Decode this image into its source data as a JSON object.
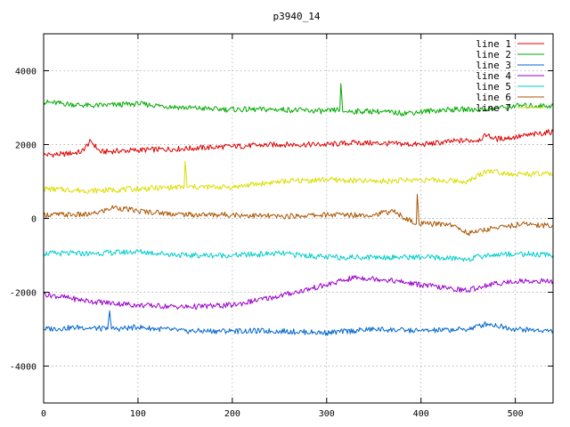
{
  "chart_data": {
    "type": "line",
    "title": "p3940_14",
    "xlabel": "",
    "ylabel": "",
    "xlim": [
      0,
      540
    ],
    "ylim": [
      -5000,
      5000
    ],
    "x_ticks": [
      0,
      100,
      200,
      300,
      400,
      500
    ],
    "y_ticks": [
      -4000,
      -2000,
      0,
      2000,
      4000
    ],
    "grid": true,
    "legend_position": "top-right",
    "series": [
      {
        "name": "line 1",
        "color": "#dd0000",
        "points": [
          [
            0,
            1720
          ],
          [
            20,
            1740
          ],
          [
            40,
            1800
          ],
          [
            50,
            2100
          ],
          [
            60,
            1800
          ],
          [
            100,
            1850
          ],
          [
            150,
            1890
          ],
          [
            200,
            1950
          ],
          [
            250,
            2000
          ],
          [
            300,
            2000
          ],
          [
            330,
            2050
          ],
          [
            360,
            2030
          ],
          [
            400,
            2000
          ],
          [
            440,
            2100
          ],
          [
            460,
            2120
          ],
          [
            470,
            2250
          ],
          [
            480,
            2150
          ],
          [
            500,
            2200
          ],
          [
            540,
            2350
          ]
        ]
      },
      {
        "name": "line 2",
        "color": "#00aa00",
        "points": [
          [
            0,
            3150
          ],
          [
            50,
            3050
          ],
          [
            100,
            3100
          ],
          [
            150,
            3000
          ],
          [
            190,
            2950
          ],
          [
            250,
            2950
          ],
          [
            300,
            2900
          ],
          [
            314,
            2950
          ],
          [
            315,
            3650
          ],
          [
            317,
            2900
          ],
          [
            350,
            2900
          ],
          [
            380,
            2850
          ],
          [
            430,
            2950
          ],
          [
            470,
            2950
          ],
          [
            500,
            3050
          ],
          [
            540,
            3050
          ]
        ]
      },
      {
        "name": "line 3",
        "color": "#0066cc",
        "points": [
          [
            0,
            -3000
          ],
          [
            40,
            -2950
          ],
          [
            68,
            -3000
          ],
          [
            70,
            -2500
          ],
          [
            72,
            -3000
          ],
          [
            100,
            -2950
          ],
          [
            150,
            -3050
          ],
          [
            200,
            -3050
          ],
          [
            250,
            -3050
          ],
          [
            300,
            -3100
          ],
          [
            350,
            -3000
          ],
          [
            400,
            -3050
          ],
          [
            450,
            -3000
          ],
          [
            470,
            -2850
          ],
          [
            500,
            -3000
          ],
          [
            540,
            -3050
          ]
        ]
      },
      {
        "name": "line 4",
        "color": "#9900cc",
        "points": [
          [
            0,
            -2050
          ],
          [
            50,
            -2250
          ],
          [
            100,
            -2350
          ],
          [
            150,
            -2400
          ],
          [
            200,
            -2350
          ],
          [
            250,
            -2100
          ],
          [
            300,
            -1800
          ],
          [
            330,
            -1600
          ],
          [
            360,
            -1650
          ],
          [
            400,
            -1800
          ],
          [
            430,
            -1900
          ],
          [
            450,
            -1950
          ],
          [
            470,
            -1800
          ],
          [
            500,
            -1700
          ],
          [
            540,
            -1700
          ]
        ]
      },
      {
        "name": "line 5",
        "color": "#00cccc",
        "points": [
          [
            0,
            -950
          ],
          [
            50,
            -950
          ],
          [
            100,
            -900
          ],
          [
            150,
            -1000
          ],
          [
            200,
            -1000
          ],
          [
            250,
            -950
          ],
          [
            300,
            -1050
          ],
          [
            350,
            -1050
          ],
          [
            400,
            -1050
          ],
          [
            450,
            -1100
          ],
          [
            470,
            -1000
          ],
          [
            500,
            -950
          ],
          [
            540,
            -1000
          ]
        ]
      },
      {
        "name": "line 6",
        "color": "#aa5500",
        "points": [
          [
            0,
            100
          ],
          [
            50,
            100
          ],
          [
            75,
            300
          ],
          [
            100,
            200
          ],
          [
            150,
            100
          ],
          [
            200,
            100
          ],
          [
            250,
            50
          ],
          [
            300,
            100
          ],
          [
            350,
            100
          ],
          [
            370,
            200
          ],
          [
            380,
            50
          ],
          [
            395,
            -150
          ],
          [
            396,
            650
          ],
          [
            398,
            -150
          ],
          [
            430,
            -150
          ],
          [
            450,
            -400
          ],
          [
            480,
            -250
          ],
          [
            510,
            -150
          ],
          [
            540,
            -200
          ]
        ]
      },
      {
        "name": "line 7",
        "color": "#dddd00",
        "points": [
          [
            0,
            800
          ],
          [
            50,
            750
          ],
          [
            100,
            800
          ],
          [
            149,
            850
          ],
          [
            150,
            1550
          ],
          [
            152,
            850
          ],
          [
            200,
            850
          ],
          [
            250,
            1000
          ],
          [
            300,
            1050
          ],
          [
            350,
            1000
          ],
          [
            400,
            1050
          ],
          [
            450,
            1000
          ],
          [
            470,
            1300
          ],
          [
            500,
            1200
          ],
          [
            540,
            1200
          ]
        ]
      }
    ]
  }
}
